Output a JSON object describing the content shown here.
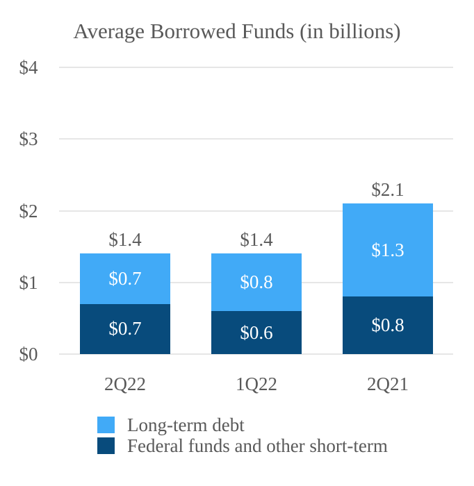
{
  "chart_data": {
    "type": "bar",
    "stacked": true,
    "title": "Average Borrowed Funds (in billions)",
    "categories": [
      "2Q22",
      "1Q22",
      "2Q21"
    ],
    "series": [
      {
        "name": "Federal funds and other short-term",
        "color": "#084B7C",
        "values": [
          0.7,
          0.6,
          0.8
        ],
        "labels": [
          "$0.7",
          "$0.6",
          "$0.8"
        ]
      },
      {
        "name": "Long-term debt",
        "color": "#41AAF7",
        "values": [
          0.7,
          0.8,
          1.3
        ],
        "labels": [
          "$0.7",
          "$0.8",
          "$1.3"
        ]
      }
    ],
    "totals": [
      "$1.4",
      "$1.4",
      "$2.1"
    ],
    "y_axis": {
      "ticks": [
        4,
        3,
        2,
        1,
        0
      ],
      "tick_labels": [
        "$4",
        "$3",
        "$2",
        "$1",
        "$0"
      ],
      "range": [
        0,
        4
      ]
    },
    "grid": true,
    "legend": {
      "position": "bottom-left",
      "entries": [
        {
          "label": "Long-term debt",
          "color": "#41AAF7"
        },
        {
          "label": "Federal funds and other short-term",
          "color": "#084B7C"
        }
      ]
    },
    "colors": {
      "text_gray": "#595959",
      "gridline": "#E6E6E6",
      "bar_value_label": "#FFFFFF"
    }
  }
}
